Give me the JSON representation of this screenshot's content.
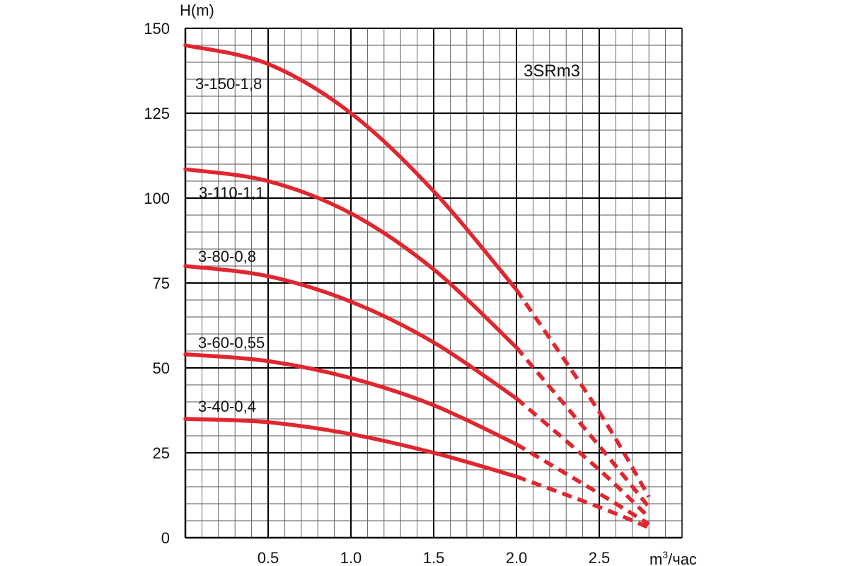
{
  "chart_data": {
    "type": "line",
    "title": "3SRm3",
    "ylabel": "H(m)",
    "xlabel_base": "m",
    "xlabel_sup": "3",
    "xlabel_tail": "/час",
    "xlim": [
      0,
      3
    ],
    "ylim": [
      0,
      150
    ],
    "x_ticks": [
      0.5,
      1.0,
      1.5,
      2.0,
      2.5
    ],
    "x_tick_labels": [
      "0.5",
      "1.0",
      "1.5",
      "2.0",
      "2.5"
    ],
    "y_ticks": [
      0,
      25,
      50,
      75,
      100,
      125,
      150
    ],
    "y_tick_labels": [
      "0",
      "25",
      "50",
      "75",
      "100",
      "125",
      "150"
    ],
    "grid": true,
    "line_color": "#e0262e",
    "series": [
      {
        "name": "3-150-1,8",
        "solid": {
          "x": [
            0,
            0.5,
            1.0,
            1.5,
            2.0
          ],
          "y": [
            145,
            139.5,
            125,
            102,
            73
          ]
        },
        "dashed": {
          "x": [
            2.0,
            2.5,
            2.8
          ],
          "y": [
            73,
            37,
            12
          ]
        }
      },
      {
        "name": "3-110-1,1",
        "solid": {
          "x": [
            0,
            0.5,
            1.0,
            1.5,
            2.0
          ],
          "y": [
            108.5,
            105,
            95.5,
            79,
            56
          ]
        },
        "dashed": {
          "x": [
            2.0,
            2.5,
            2.8
          ],
          "y": [
            56,
            27,
            9
          ]
        }
      },
      {
        "name": "3-80-0,8",
        "solid": {
          "x": [
            0,
            0.5,
            1.0,
            1.5,
            2.0
          ],
          "y": [
            80,
            77,
            69.5,
            57.5,
            41
          ]
        },
        "dashed": {
          "x": [
            2.0,
            2.5,
            2.8
          ],
          "y": [
            41,
            20,
            6
          ]
        }
      },
      {
        "name": "3-60-0,55",
        "solid": {
          "x": [
            0,
            0.5,
            1.0,
            1.5,
            2.0
          ],
          "y": [
            54,
            52,
            47,
            39,
            27.5
          ]
        },
        "dashed": {
          "x": [
            2.0,
            2.5,
            2.8
          ],
          "y": [
            27.5,
            13,
            4
          ]
        }
      },
      {
        "name": "3-40-0,4",
        "solid": {
          "x": [
            0,
            0.5,
            1.0,
            1.5,
            2.0
          ],
          "y": [
            35,
            34,
            30.5,
            25,
            18
          ]
        },
        "dashed": {
          "x": [
            2.0,
            2.5,
            2.8
          ],
          "y": [
            18,
            9,
            3
          ]
        }
      }
    ]
  }
}
